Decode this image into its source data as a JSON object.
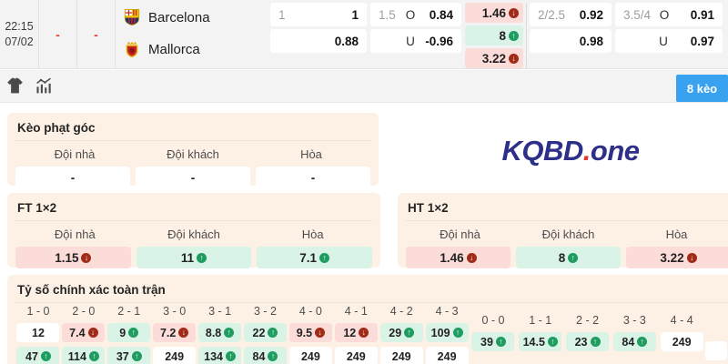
{
  "match": {
    "time": "22:15",
    "date": "07/02",
    "home_score": "-",
    "away_score": "-",
    "home_team": "Barcelona",
    "away_team": "Mallorca",
    "handicap_ft": {
      "line": "1",
      "home_odds": "1",
      "away_odds": "0.88"
    },
    "total_ft": {
      "line": "1.5",
      "over_label": "O",
      "over_odds": "0.84",
      "under_label": "U",
      "under_odds": "-0.96"
    },
    "oneXtwo": [
      {
        "value": "1.46",
        "trend": "down"
      },
      {
        "value": "8",
        "trend": "up"
      },
      {
        "value": "3.22",
        "trend": "down"
      }
    ],
    "handicap_2nd": {
      "line": "2/2.5",
      "home_odds": "0.92",
      "away_odds": "0.98"
    },
    "total_2nd": {
      "line": "3.5/4",
      "over_label": "O",
      "over_odds": "0.91",
      "under_label": "U",
      "under_odds": "0.97"
    }
  },
  "toolbar": {
    "odds_count_button": "8 kèo"
  },
  "watermark": {
    "brand": "KQBD",
    "dot": ".",
    "suffix": "one"
  },
  "corner_odds": {
    "title": "Kèo phạt góc",
    "headers": [
      "Đội nhà",
      "Đội khách",
      "Hòa"
    ],
    "values": [
      "-",
      "-",
      "-"
    ]
  },
  "ft_1x2": {
    "title": "FT 1×2",
    "headers": [
      "Đội nhà",
      "Đội khách",
      "Hòa"
    ],
    "cells": [
      {
        "value": "1.15",
        "trend": "down"
      },
      {
        "value": "11",
        "trend": "up"
      },
      {
        "value": "7.1",
        "trend": "up"
      }
    ]
  },
  "ht_1x2": {
    "title": "HT 1×2",
    "headers": [
      "Đội nhà",
      "Đội khách",
      "Hòa"
    ],
    "cells": [
      {
        "value": "1.46",
        "trend": "down"
      },
      {
        "value": "8",
        "trend": "up"
      },
      {
        "value": "3.22",
        "trend": "down"
      }
    ]
  },
  "correct_score": {
    "title": "Tỷ số chính xác toàn trận",
    "columns": [
      {
        "score": "1 - 0",
        "row1": {
          "value": "12",
          "trend": "none"
        },
        "row2": {
          "value": "47",
          "trend": "up"
        }
      },
      {
        "score": "2 - 0",
        "row1": {
          "value": "7.4",
          "trend": "down"
        },
        "row2": {
          "value": "114",
          "trend": "up"
        }
      },
      {
        "score": "2 - 1",
        "row1": {
          "value": "9",
          "trend": "up"
        },
        "row2": {
          "value": "37",
          "trend": "up"
        }
      },
      {
        "score": "3 - 0",
        "row1": {
          "value": "7.2",
          "trend": "down"
        },
        "row2": {
          "value": "249",
          "trend": "none"
        }
      },
      {
        "score": "3 - 1",
        "row1": {
          "value": "8.8",
          "trend": "up"
        },
        "row2": {
          "value": "134",
          "trend": "up"
        }
      },
      {
        "score": "3 - 2",
        "row1": {
          "value": "22",
          "trend": "up"
        },
        "row2": {
          "value": "84",
          "trend": "up"
        }
      },
      {
        "score": "4 - 0",
        "row1": {
          "value": "9.5",
          "trend": "down"
        },
        "row2": {
          "value": "249",
          "trend": "none"
        }
      },
      {
        "score": "4 - 1",
        "row1": {
          "value": "12",
          "trend": "down"
        },
        "row2": {
          "value": "249",
          "trend": "none"
        }
      },
      {
        "score": "4 - 2",
        "row1": {
          "value": "29",
          "trend": "up"
        },
        "row2": {
          "value": "249",
          "trend": "none"
        }
      },
      {
        "score": "4 - 3",
        "row1": {
          "value": "109",
          "trend": "up"
        },
        "row2": {
          "value": "249",
          "trend": "none"
        }
      }
    ],
    "draw_columns": [
      {
        "score": "0 - 0",
        "value": "39",
        "trend": "up"
      },
      {
        "score": "1 - 1",
        "value": "14.5",
        "trend": "up"
      },
      {
        "score": "2 - 2",
        "value": "23",
        "trend": "up"
      },
      {
        "score": "3 - 3",
        "value": "84",
        "trend": "up"
      },
      {
        "score": "4 - 4",
        "value": "249",
        "trend": "none"
      }
    ]
  },
  "colors": {
    "accent_blue": "#38a1f0",
    "up_bg": "#d9f4e6",
    "down_bg": "#fbdcd8",
    "up_icon": "#1f9d61",
    "down_icon": "#a02c18",
    "panel_bg": "#fdf1e5",
    "brand_blue": "#2d2f88",
    "brand_red": "#e03a36"
  }
}
